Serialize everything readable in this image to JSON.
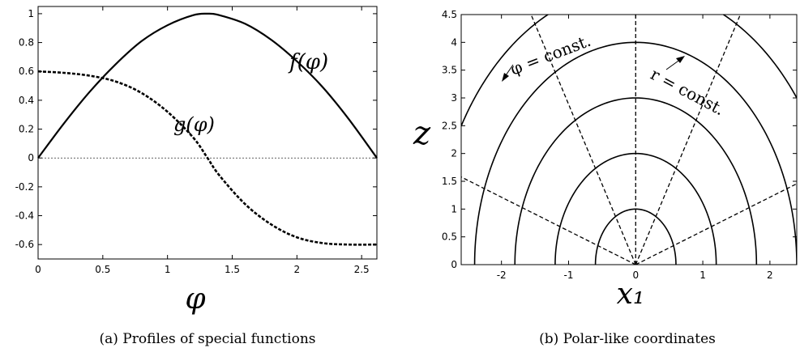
{
  "chart_data": [
    {
      "type": "line",
      "caption": "(a) Profiles of special functions",
      "xlabel": "φ",
      "ylabel": "",
      "xlim": [
        0,
        2.618
      ],
      "ylim": [
        -0.7,
        1.05
      ],
      "xticks": [
        0,
        0.5,
        1,
        1.5,
        2,
        2.5
      ],
      "xtick_labels": [
        "0",
        "0.5",
        "1",
        "1.5",
        "2",
        "2.5"
      ],
      "yticks": [
        -0.6,
        -0.4,
        -0.2,
        0,
        0.2,
        0.4,
        0.6,
        0.8,
        1
      ],
      "ytick_labels": [
        "-0.6",
        "-0.4",
        "-0.2",
        "0",
        "0.2",
        "0.4",
        "0.6",
        "0.8",
        "1"
      ],
      "grid": false,
      "zero_line": true,
      "series": [
        {
          "name": "f(φ)",
          "style": "solid",
          "x": [
            0,
            0.2,
            0.4,
            0.6,
            0.8,
            1.0,
            1.2,
            1.309,
            1.4,
            1.6,
            1.8,
            2.0,
            2.2,
            2.4,
            2.618
          ],
          "values": [
            0,
            0.24,
            0.46,
            0.65,
            0.81,
            0.92,
            0.99,
            1.0,
            0.99,
            0.93,
            0.82,
            0.67,
            0.49,
            0.27,
            0
          ]
        },
        {
          "name": "g(φ)",
          "style": "dashed",
          "x": [
            0,
            0.2,
            0.4,
            0.6,
            0.8,
            1.0,
            1.2,
            1.309,
            1.4,
            1.6,
            1.8,
            2.0,
            2.2,
            2.4,
            2.618
          ],
          "values": [
            0.6,
            0.59,
            0.57,
            0.53,
            0.45,
            0.32,
            0.14,
            0.0,
            -0.12,
            -0.32,
            -0.46,
            -0.55,
            -0.59,
            -0.6,
            -0.6
          ]
        }
      ],
      "labels": [
        "f(φ)",
        "g(φ)"
      ]
    },
    {
      "type": "line",
      "caption": "(b) Polar-like coordinates",
      "xlabel": "x₁",
      "ylabel": "z",
      "xlim": [
        -2.6,
        2.4
      ],
      "ylim": [
        0,
        4.5
      ],
      "xticks": [
        -2,
        -1,
        0,
        1,
        2
      ],
      "xtick_labels": [
        "-2",
        "-1",
        "0",
        "1",
        "2"
      ],
      "yticks": [
        0,
        0.5,
        1,
        1.5,
        2,
        2.5,
        3,
        3.5,
        4,
        4.5
      ],
      "ytick_labels": [
        "0",
        "0.5",
        "1",
        "1.5",
        "2",
        "2.5",
        "3",
        "3.5",
        "4",
        "4.5"
      ],
      "grid": false,
      "r_values": [
        1,
        2,
        3,
        4,
        5
      ],
      "x_scale": 0.6,
      "phi_line_angles_deg": [
        90,
        60,
        120,
        20,
        160
      ],
      "annotations": [
        "φ = const.",
        "r = const."
      ]
    }
  ]
}
